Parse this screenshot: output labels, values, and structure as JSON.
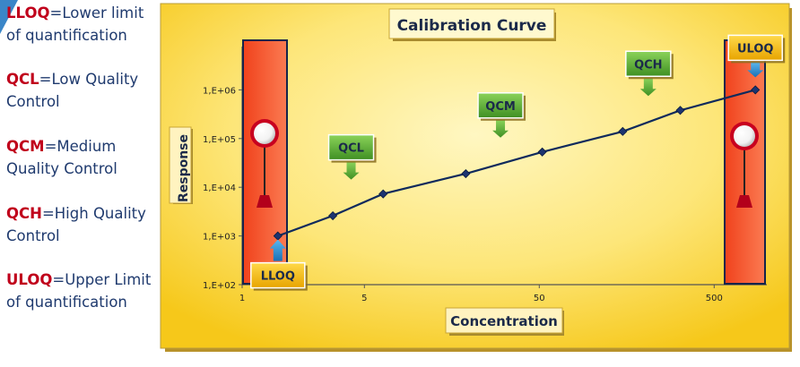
{
  "legend": [
    {
      "abbr": "LLOQ",
      "text": "=Lower limit of quantification"
    },
    {
      "abbr": "QCL",
      "text": "=Low Quality Control"
    },
    {
      "abbr": "QCM",
      "text": "=Medium Quality Control"
    },
    {
      "abbr": "QCH",
      "text": "=High Quality Control"
    },
    {
      "abbr": "ULOQ",
      "text": "=Upper Limit of quantification"
    }
  ],
  "chart_data": {
    "type": "line",
    "title": "Calibration Curve",
    "xlabel": "Concentration",
    "ylabel": "Response",
    "x_scale": "log",
    "y_scale": "log",
    "xlim": [
      1,
      1000
    ],
    "ylim": [
      100,
      10000000
    ],
    "x_ticks": [
      {
        "value": 1,
        "label": "1"
      },
      {
        "value": 5,
        "label": "5"
      },
      {
        "value": 50,
        "label": "50"
      },
      {
        "value": 500,
        "label": "500"
      }
    ],
    "y_ticks": [
      {
        "value": 100,
        "label": "1,E+02"
      },
      {
        "value": 1000,
        "label": "1,E+03"
      },
      {
        "value": 10000,
        "label": "1,E+04"
      },
      {
        "value": 100000,
        "label": "1,E+05"
      },
      {
        "value": 1000000,
        "label": "1,E+06"
      }
    ],
    "grid": false,
    "series": [
      {
        "points": [
          {
            "x": 1.6,
            "y": 1000
          },
          {
            "x": 3.3,
            "y": 2600
          },
          {
            "x": 6.4,
            "y": 7300
          },
          {
            "x": 19,
            "y": 19000
          },
          {
            "x": 52,
            "y": 53000
          },
          {
            "x": 150,
            "y": 140000
          },
          {
            "x": 320,
            "y": 380000
          },
          {
            "x": 860,
            "y": 1000000
          }
        ]
      }
    ],
    "annotations": [
      {
        "label": "LLOQ",
        "x": 1.6,
        "y": 1000,
        "arrow": "up"
      },
      {
        "label": "QCL",
        "x": 4.2,
        "y": 7300,
        "arrow": "down"
      },
      {
        "label": "QCM",
        "x": 30,
        "y": 53000,
        "arrow": "down"
      },
      {
        "label": "QCH",
        "x": 210,
        "y": 380000,
        "arrow": "down"
      },
      {
        "label": "ULOQ",
        "x": 860,
        "y": 1000000,
        "arrow": "down"
      }
    ],
    "colors": {
      "line": "#0f2a5c",
      "marker": "#1c3470",
      "qc_label": "#55a630",
      "limit_label": "#f3b400",
      "limit_bar": "#f5522b",
      "arrow": "#1f8fd0"
    }
  }
}
